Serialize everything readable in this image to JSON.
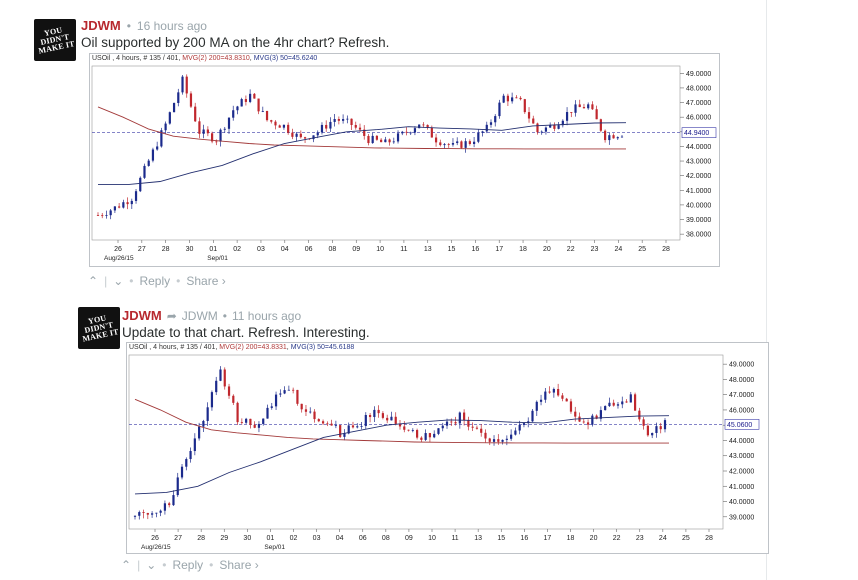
{
  "comments": [
    {
      "author": "JDWM",
      "reply_to": "",
      "time": "16 hours ago",
      "text": "Oil supported by 200 MA on the 4hr chart? Refresh.",
      "avatar_text": "YOU DIDN'T MAKE IT",
      "actions": {
        "up": "^",
        "down": "v",
        "reply": "Reply",
        "share": "Share ›"
      },
      "chart": {
        "legend": {
          "symbol": "USOil , 4 hours, # 135 / 401, ",
          "ma1": "MVG(2) 200=43.8310",
          "sep": ", ",
          "ma2": "MVG(3) 50=45.6240"
        },
        "price_label": "44.9400",
        "y_ticks": [
          "49.0000",
          "48.0000",
          "47.0000",
          "46.0000",
          "45.0000",
          "44.0000",
          "43.0000",
          "42.0000",
          "41.0000",
          "40.0000",
          "39.0000",
          "38.0000"
        ],
        "x_ticks": [
          "26",
          "27",
          "28",
          "30",
          "01",
          "02",
          "03",
          "04",
          "06",
          "08",
          "09",
          "10",
          "11",
          "13",
          "15",
          "16",
          "17",
          "18",
          "20",
          "22",
          "23",
          "24",
          "25",
          "28"
        ],
        "x_sub": [
          "Aug/26/15",
          "Sep/01"
        ]
      }
    },
    {
      "author": "JDWM",
      "reply_to": "JDWM",
      "time": "11 hours ago",
      "text": "Update to that chart. Refresh. Interesting.",
      "avatar_text": "YOU DIDN'T MAKE IT",
      "actions": {
        "up": "^",
        "down": "v",
        "reply": "Reply",
        "share": "Share ›"
      },
      "chart": {
        "legend": {
          "symbol": "USOil , 4 hours, # 135 / 401, ",
          "ma1": "MVG(2) 200=43.8331",
          "sep": ", ",
          "ma2": "MVG(3) 50=45.6188"
        },
        "price_label": "45.0600",
        "y_ticks": [
          "49.0000",
          "48.0000",
          "47.0000",
          "46.0000",
          "45.0000",
          "44.0000",
          "43.0000",
          "42.0000",
          "41.0000",
          "40.0000",
          "39.0000"
        ],
        "x_ticks": [
          "26",
          "27",
          "28",
          "29",
          "30",
          "01",
          "02",
          "03",
          "04",
          "06",
          "08",
          "09",
          "10",
          "11",
          "13",
          "15",
          "16",
          "17",
          "18",
          "20",
          "22",
          "23",
          "24",
          "25",
          "28"
        ],
        "x_sub": [
          "Aug/26/15",
          "Sep/01"
        ]
      }
    }
  ],
  "chart_data": [
    {
      "type": "line",
      "title": "",
      "xlabel": "",
      "ylabel": "",
      "ylim": [
        38,
        49.5
      ],
      "series": [
        {
          "values": [
            39.3,
            39.8,
            40.5,
            43.0,
            45.5,
            48.5,
            45.0,
            44.5,
            46.5,
            47.5,
            45.8,
            45.4,
            44.5,
            45.0,
            45.9,
            45.5,
            44.5,
            44.2,
            44.8,
            45.6,
            44.5,
            44.0,
            44.3,
            45.2,
            47.4,
            47.0,
            45.0,
            45.5,
            46.5,
            46.8,
            44.7,
            44.9
          ]
        },
        {
          "values": [
            46.7,
            46.0,
            45.2,
            44.7,
            44.5,
            44.35,
            44.2,
            44.1,
            44.05,
            44.0,
            43.95,
            43.9,
            43.88,
            43.86,
            43.85,
            43.84,
            43.84,
            43.83,
            43.83,
            43.83,
            43.83,
            43.83
          ]
        },
        {
          "values": [
            41.4,
            41.4,
            41.6,
            42.2,
            42.7,
            43.5,
            44.2,
            44.6,
            45.0,
            45.15,
            45.35,
            45.25,
            45.2,
            45.1,
            45.4,
            45.5,
            45.6,
            45.62
          ]
        }
      ]
    },
    {
      "type": "line",
      "title": "",
      "xlabel": "",
      "ylabel": "",
      "ylim": [
        38.5,
        49.5
      ],
      "series": [
        {
          "values": [
            39.0,
            39.3,
            40.0,
            42.8,
            45.5,
            48.5,
            45.5,
            44.8,
            46.5,
            47.5,
            45.8,
            45.4,
            44.5,
            45.0,
            45.9,
            45.5,
            44.5,
            44.2,
            44.8,
            45.6,
            44.5,
            44.0,
            44.3,
            45.2,
            47.4,
            47.0,
            45.0,
            45.5,
            46.5,
            46.8,
            44.5,
            45.1
          ]
        },
        {
          "values": [
            46.7,
            46.0,
            45.2,
            44.7,
            44.5,
            44.35,
            44.2,
            44.1,
            44.05,
            44.0,
            43.95,
            43.9,
            43.88,
            43.86,
            43.85,
            43.84,
            43.84,
            43.83,
            43.83,
            43.83,
            43.83,
            43.83
          ]
        },
        {
          "values": [
            40.5,
            40.6,
            41.0,
            41.9,
            42.6,
            43.4,
            44.2,
            44.6,
            45.0,
            45.2,
            45.35,
            45.3,
            45.2,
            45.15,
            45.4,
            45.5,
            45.6,
            45.62
          ]
        }
      ]
    }
  ]
}
